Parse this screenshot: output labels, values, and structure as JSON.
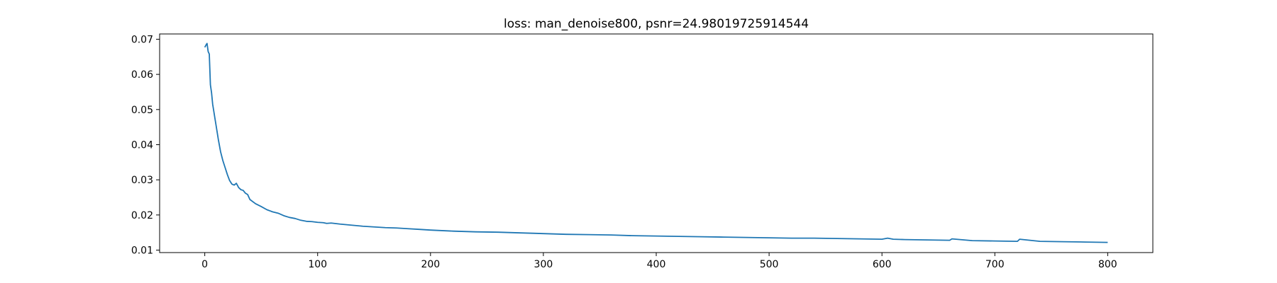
{
  "chart_data": {
    "type": "line",
    "title": "loss: man_denoise800, psnr=24.98019725914544",
    "xlabel": "",
    "ylabel": "",
    "xlim": [
      -40,
      840
    ],
    "ylim": [
      0.0093,
      0.0715
    ],
    "xticks": [
      0,
      100,
      200,
      300,
      400,
      500,
      600,
      700,
      800
    ],
    "yticks": [
      0.01,
      0.02,
      0.03,
      0.04,
      0.05,
      0.06,
      0.07
    ],
    "grid": false,
    "legend": "none",
    "series": [
      {
        "color": "#1f77b4",
        "x": [
          0,
          1,
          2,
          3,
          4,
          5,
          6,
          7,
          8,
          9,
          10,
          12,
          14,
          16,
          18,
          20,
          22,
          24,
          26,
          28,
          30,
          32,
          34,
          36,
          38,
          40,
          45,
          50,
          55,
          60,
          65,
          70,
          75,
          80,
          85,
          90,
          95,
          100,
          105,
          108,
          112,
          120,
          130,
          140,
          150,
          160,
          170,
          180,
          190,
          200,
          220,
          240,
          260,
          280,
          300,
          320,
          340,
          360,
          380,
          400,
          420,
          440,
          460,
          480,
          500,
          520,
          540,
          560,
          580,
          600,
          605,
          610,
          620,
          640,
          660,
          662,
          680,
          700,
          720,
          722,
          740,
          760,
          780,
          800
        ],
        "values": [
          0.0677,
          0.0683,
          0.0688,
          0.0665,
          0.0658,
          0.057,
          0.0548,
          0.0515,
          0.0495,
          0.0475,
          0.0455,
          0.0415,
          0.038,
          0.0355,
          0.0335,
          0.0315,
          0.0298,
          0.0288,
          0.0285,
          0.029,
          0.0278,
          0.0272,
          0.027,
          0.0262,
          0.0258,
          0.0244,
          0.0232,
          0.0224,
          0.0215,
          0.0209,
          0.0205,
          0.0198,
          0.0193,
          0.019,
          0.0185,
          0.0182,
          0.0181,
          0.0179,
          0.0178,
          0.0176,
          0.0177,
          0.0174,
          0.0171,
          0.0168,
          0.0166,
          0.0164,
          0.0163,
          0.0161,
          0.0159,
          0.0157,
          0.0154,
          0.0152,
          0.0151,
          0.0149,
          0.0147,
          0.0145,
          0.0144,
          0.0143,
          0.0141,
          0.014,
          0.0139,
          0.0138,
          0.0137,
          0.0136,
          0.0135,
          0.0134,
          0.0134,
          0.0133,
          0.0132,
          0.0131,
          0.0134,
          0.0131,
          0.013,
          0.0129,
          0.0128,
          0.0132,
          0.0127,
          0.0126,
          0.0125,
          0.0131,
          0.0125,
          0.0124,
          0.0123,
          0.0122
        ]
      }
    ]
  }
}
